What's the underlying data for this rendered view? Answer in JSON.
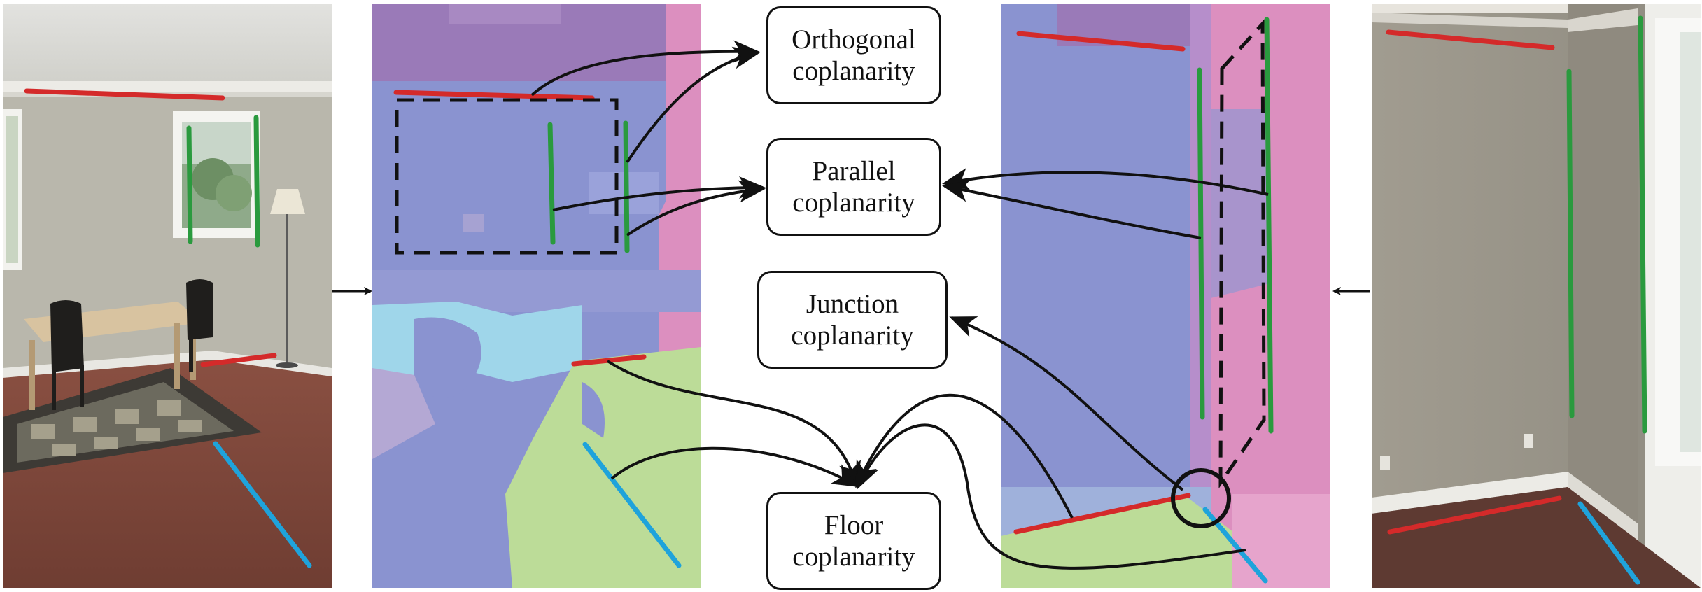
{
  "labels": {
    "orthogonal": "Orthogonal\ncoplanarity",
    "parallel": "Parallel\ncoplanarity",
    "junction": "Junction\ncoplanarity",
    "floor": "Floor\ncoplanarity"
  },
  "colors": {
    "horizontal_line": "#d42a2a",
    "vertical_line": "#2a9a3e",
    "floor_line": "#1fa3db",
    "arrow": "#111111",
    "seg_blue": "#8a93d0",
    "seg_purple": "#9a7ab8",
    "seg_pink": "#dc8fbf",
    "seg_green": "#bcdc98",
    "seg_cyan": "#9fd6ea"
  },
  "icons": {
    "left_photo": "living-room-photo",
    "right_photo": "room-corner-photo",
    "left_segmentation": "plane-segmentation-map",
    "right_segmentation": "plane-segmentation-map"
  }
}
